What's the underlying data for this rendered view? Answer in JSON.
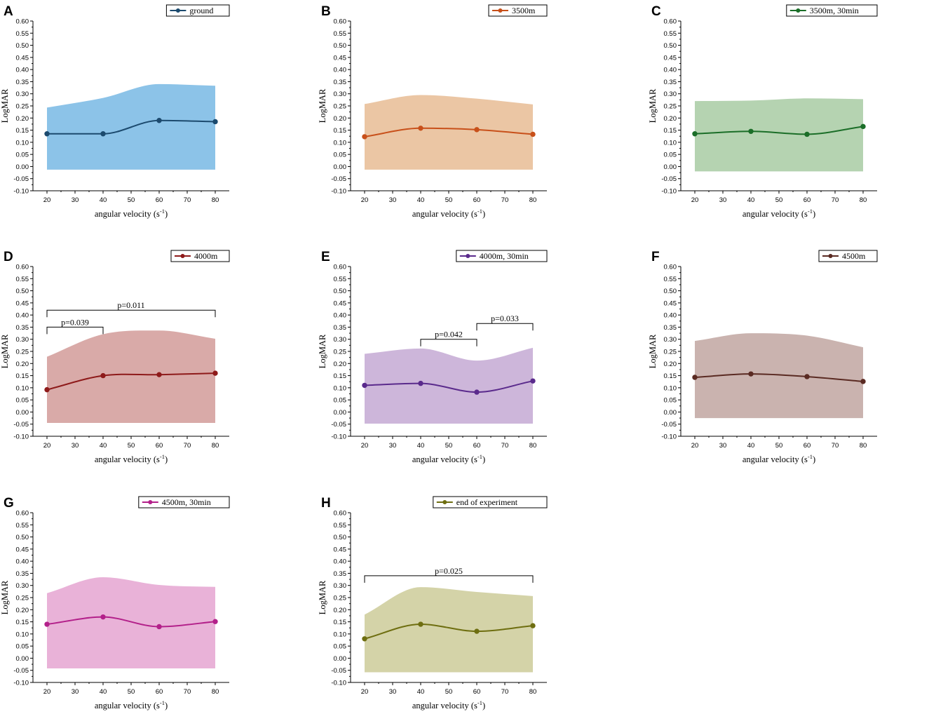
{
  "figure": {
    "x_axis_label": "angular velocity (s",
    "x_axis_label_sup": "-1",
    "x_axis_label_end": ")",
    "y_axis_label": "LogMAR",
    "x_ticks": [
      20,
      30,
      40,
      50,
      60,
      70,
      80
    ],
    "y_ticks": [
      "0.60",
      "0.55",
      "0.50",
      "0.45",
      "0.40",
      "0.35",
      "0.30",
      "0.25",
      "0.20",
      "0.15",
      "0.10",
      "0.05",
      "0.00",
      "-0.05",
      "-0.10"
    ]
  },
  "chart_data": [
    {
      "panel": "A",
      "type": "line",
      "legend": "ground",
      "line_color": "#1c4a6e",
      "fill_color": "#8cc3e8",
      "x": [
        20,
        40,
        60,
        80
      ],
      "values": [
        0.135,
        0.135,
        0.19,
        0.185
      ],
      "band_upper": [
        0.243,
        0.283,
        0.34,
        0.333
      ],
      "band_lower": [
        -0.013,
        -0.013,
        -0.013,
        -0.013
      ],
      "xlim": [
        15,
        85
      ],
      "ylim": [
        -0.1,
        0.6
      ],
      "significance": []
    },
    {
      "panel": "B",
      "type": "line",
      "legend": "3500m",
      "line_color": "#c8501a",
      "fill_color": "#ebc6a4",
      "x": [
        20,
        40,
        60,
        80
      ],
      "values": [
        0.123,
        0.158,
        0.152,
        0.133
      ],
      "band_upper": [
        0.258,
        0.295,
        0.28,
        0.256
      ],
      "band_lower": [
        -0.013,
        -0.013,
        -0.013,
        -0.013
      ],
      "xlim": [
        15,
        85
      ],
      "ylim": [
        -0.1,
        0.6
      ],
      "significance": []
    },
    {
      "panel": "C",
      "type": "line",
      "legend": "3500m, 30min",
      "line_color": "#1b6e28",
      "fill_color": "#b5d3b1",
      "x": [
        20,
        40,
        60,
        80
      ],
      "values": [
        0.135,
        0.145,
        0.133,
        0.165
      ],
      "band_upper": [
        0.27,
        0.272,
        0.281,
        0.278
      ],
      "band_lower": [
        -0.02,
        -0.02,
        -0.02,
        -0.02
      ],
      "xlim": [
        15,
        85
      ],
      "ylim": [
        -0.1,
        0.6
      ],
      "significance": []
    },
    {
      "panel": "D",
      "type": "line",
      "legend": "4000m",
      "line_color": "#8e1a1a",
      "fill_color": "#d9aaa8",
      "x": [
        20,
        40,
        60,
        80
      ],
      "values": [
        0.092,
        0.15,
        0.154,
        0.16
      ],
      "band_upper": [
        0.228,
        0.321,
        0.336,
        0.302
      ],
      "band_lower": [
        -0.045,
        -0.045,
        -0.045,
        -0.045
      ],
      "xlim": [
        15,
        85
      ],
      "ylim": [
        -0.1,
        0.6
      ],
      "significance": [
        {
          "x1": 20,
          "x2": 40,
          "y": 0.35,
          "label": "p=0.039"
        },
        {
          "x1": 20,
          "x2": 80,
          "y": 0.42,
          "label": "p=0.011"
        }
      ]
    },
    {
      "panel": "E",
      "type": "line",
      "legend": "4000m, 30min",
      "line_color": "#5a2a8c",
      "fill_color": "#cdb6da",
      "x": [
        20,
        40,
        60,
        80
      ],
      "values": [
        0.11,
        0.118,
        0.082,
        0.128
      ],
      "band_upper": [
        0.24,
        0.262,
        0.212,
        0.265
      ],
      "band_lower": [
        -0.048,
        -0.048,
        -0.048,
        -0.048
      ],
      "xlim": [
        15,
        85
      ],
      "ylim": [
        -0.1,
        0.6
      ],
      "significance": [
        {
          "x1": 40,
          "x2": 60,
          "y": 0.3,
          "label": "p=0.042"
        },
        {
          "x1": 60,
          "x2": 80,
          "y": 0.365,
          "label": "p=0.033"
        }
      ]
    },
    {
      "panel": "F",
      "type": "line",
      "legend": "4500m",
      "line_color": "#5a2a22",
      "fill_color": "#cab3af",
      "x": [
        20,
        40,
        60,
        80
      ],
      "values": [
        0.143,
        0.157,
        0.146,
        0.126
      ],
      "band_upper": [
        0.293,
        0.325,
        0.315,
        0.267
      ],
      "band_lower": [
        -0.025,
        -0.025,
        -0.025,
        -0.025
      ],
      "xlim": [
        15,
        85
      ],
      "ylim": [
        -0.1,
        0.6
      ],
      "significance": []
    },
    {
      "panel": "G",
      "type": "line",
      "legend": "4500m, 30min",
      "line_color": "#b3208a",
      "fill_color": "#e9b2d8",
      "x": [
        20,
        40,
        60,
        80
      ],
      "values": [
        0.14,
        0.17,
        0.13,
        0.151
      ],
      "band_upper": [
        0.268,
        0.334,
        0.302,
        0.294
      ],
      "band_lower": [
        -0.042,
        -0.042,
        -0.042,
        -0.042
      ],
      "xlim": [
        15,
        85
      ],
      "ylim": [
        -0.1,
        0.6
      ],
      "significance": []
    },
    {
      "panel": "H",
      "type": "line",
      "legend": "end of experiment",
      "line_color": "#6e6e10",
      "fill_color": "#d4d3a8",
      "x": [
        20,
        40,
        60,
        80
      ],
      "values": [
        0.08,
        0.14,
        0.111,
        0.134
      ],
      "band_upper": [
        0.18,
        0.293,
        0.273,
        0.256
      ],
      "band_lower": [
        -0.058,
        -0.058,
        -0.058,
        -0.058
      ],
      "xlim": [
        15,
        85
      ],
      "ylim": [
        -0.1,
        0.6
      ],
      "significance": [
        {
          "x1": 20,
          "x2": 80,
          "y": 0.34,
          "label": "p=0.025"
        }
      ]
    }
  ]
}
